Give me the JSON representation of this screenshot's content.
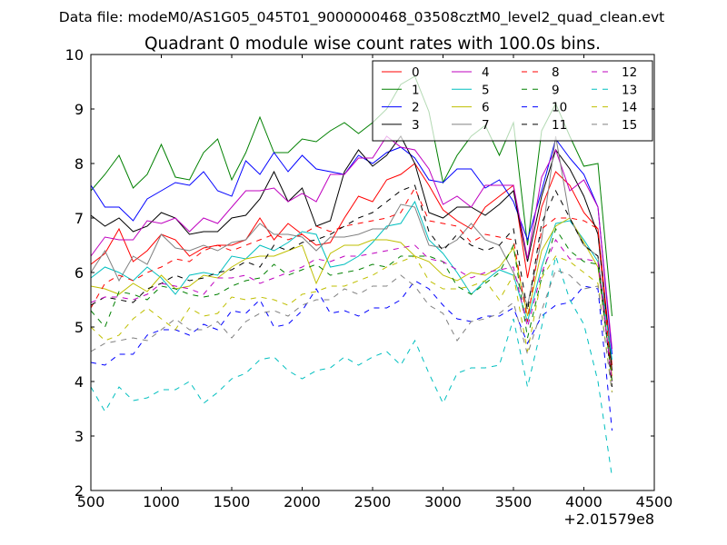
{
  "chart_data": {
    "type": "line",
    "suptitle": "Data file: modeM0/AS1G05_045T01_9000000468_03508cztM0_level2_quad_clean.evt",
    "title": "Quadrant 0 module wise count rates with 100.0s bins.",
    "xlabel": "",
    "ylabel": "",
    "x_offset_label": "+2.01579e8",
    "xlim": [
      500,
      4500
    ],
    "ylim": [
      2,
      10
    ],
    "xticks": [
      "500",
      "1000",
      "1500",
      "2000",
      "2500",
      "3000",
      "3500",
      "4000",
      "4500"
    ],
    "yticks": [
      "2",
      "3",
      "4",
      "5",
      "6",
      "7",
      "8",
      "9",
      "10"
    ],
    "grid": false,
    "legend_position": "top-right",
    "x": [
      500,
      600,
      700,
      800,
      900,
      1000,
      1100,
      1200,
      1300,
      1400,
      1500,
      1600,
      1700,
      1800,
      1900,
      2000,
      2100,
      2200,
      2300,
      2400,
      2500,
      2600,
      2700,
      2800,
      2900,
      3000,
      3100,
      3200,
      3300,
      3400,
      3500,
      3600,
      3700,
      3800,
      3900,
      4000,
      4100,
      4200
    ],
    "series": [
      {
        "name": "0",
        "color": "#ff0000",
        "dash": "solid",
        "values": [
          6.15,
          6.35,
          6.8,
          6.2,
          6.4,
          6.7,
          6.6,
          6.3,
          6.45,
          6.5,
          6.5,
          6.6,
          7.0,
          6.6,
          6.9,
          6.7,
          6.5,
          6.55,
          7.0,
          7.4,
          7.3,
          7.7,
          7.8,
          8.0,
          7.6,
          7.15,
          6.95,
          6.8,
          7.2,
          7.4,
          7.6,
          5.9,
          7.2,
          7.85,
          7.6,
          7.1,
          6.8,
          4.3
        ]
      },
      {
        "name": "1",
        "color": "#008000",
        "dash": "solid",
        "values": [
          7.5,
          7.8,
          8.15,
          7.55,
          7.8,
          8.35,
          7.75,
          7.7,
          8.2,
          8.45,
          7.7,
          8.2,
          8.85,
          8.2,
          8.2,
          8.45,
          8.4,
          8.6,
          8.75,
          8.55,
          8.75,
          9.0,
          9.45,
          9.6,
          8.95,
          7.65,
          8.15,
          8.5,
          8.7,
          8.15,
          8.75,
          6.5,
          8.6,
          9.1,
          8.5,
          7.95,
          8.0,
          5.2
        ]
      },
      {
        "name": "2",
        "color": "#0000ff",
        "dash": "solid",
        "values": [
          7.6,
          7.2,
          7.2,
          6.95,
          7.35,
          7.5,
          7.65,
          7.6,
          7.85,
          7.5,
          7.4,
          8.05,
          7.8,
          8.2,
          7.85,
          8.15,
          7.9,
          7.85,
          7.8,
          8.15,
          8.0,
          8.2,
          8.3,
          8.1,
          7.7,
          7.65,
          7.9,
          7.9,
          7.55,
          7.7,
          7.3,
          6.6,
          7.5,
          8.45,
          8.1,
          7.8,
          7.2,
          4.5
        ]
      },
      {
        "name": "3",
        "color": "#000000",
        "dash": "solid",
        "values": [
          7.05,
          6.85,
          7.0,
          6.75,
          6.85,
          7.1,
          7.0,
          6.7,
          6.75,
          6.75,
          7.0,
          7.05,
          7.35,
          7.85,
          7.3,
          7.55,
          6.85,
          6.95,
          7.85,
          8.25,
          7.95,
          8.15,
          8.5,
          8.0,
          7.1,
          7.0,
          7.2,
          7.2,
          7.05,
          7.25,
          7.5,
          6.2,
          7.4,
          8.25,
          7.9,
          7.4,
          6.7,
          4.2
        ]
      },
      {
        "name": "4",
        "color": "#bf00bf",
        "dash": "solid",
        "values": [
          6.3,
          6.65,
          6.6,
          6.6,
          6.95,
          6.9,
          7.0,
          6.75,
          7.0,
          6.9,
          7.2,
          7.5,
          7.5,
          7.55,
          7.3,
          7.45,
          7.3,
          7.8,
          7.8,
          8.1,
          8.1,
          8.5,
          8.3,
          8.25,
          7.9,
          7.25,
          7.4,
          7.2,
          7.6,
          7.6,
          7.6,
          6.25,
          7.75,
          8.25,
          7.5,
          7.7,
          7.2,
          4.6
        ]
      },
      {
        "name": "5",
        "color": "#00bfbf",
        "dash": "solid",
        "values": [
          5.9,
          6.1,
          6.0,
          5.85,
          6.1,
          5.9,
          5.6,
          5.95,
          6.0,
          5.95,
          6.3,
          6.25,
          6.5,
          6.4,
          6.55,
          6.75,
          6.7,
          6.1,
          6.15,
          6.3,
          6.55,
          6.85,
          6.9,
          7.3,
          6.6,
          6.35,
          6.0,
          5.6,
          5.85,
          6.05,
          5.95,
          5.1,
          6.1,
          6.9,
          6.95,
          6.6,
          6.2,
          4.4
        ]
      },
      {
        "name": "6",
        "color": "#bfbf00",
        "dash": "solid",
        "values": [
          5.75,
          5.7,
          5.6,
          5.8,
          5.65,
          5.95,
          5.7,
          5.75,
          5.95,
          5.9,
          6.1,
          6.25,
          6.3,
          6.3,
          6.4,
          6.5,
          5.8,
          6.35,
          6.5,
          6.5,
          6.6,
          6.6,
          6.55,
          6.3,
          6.2,
          5.95,
          5.85,
          6.0,
          5.95,
          6.1,
          6.45,
          5.2,
          6.4,
          6.85,
          7.0,
          6.55,
          6.1,
          4.1
        ]
      },
      {
        "name": "7",
        "color": "#808080",
        "dash": "solid",
        "values": [
          6.0,
          6.4,
          5.85,
          6.3,
          6.15,
          6.7,
          6.45,
          6.4,
          6.5,
          6.4,
          6.55,
          6.6,
          6.9,
          6.7,
          6.7,
          6.65,
          6.4,
          6.65,
          6.65,
          6.7,
          6.8,
          6.8,
          7.25,
          7.2,
          6.5,
          6.45,
          6.6,
          6.9,
          6.6,
          6.5,
          6.0,
          5.4,
          6.6,
          8.5,
          7.0,
          6.5,
          6.3,
          4.0
        ]
      },
      {
        "name": "8",
        "color": "#ff0000",
        "dash": "dashed",
        "values": [
          5.35,
          5.8,
          5.95,
          5.85,
          6.0,
          6.1,
          6.25,
          6.2,
          6.4,
          6.5,
          6.4,
          6.5,
          6.6,
          6.7,
          6.6,
          6.7,
          6.85,
          6.75,
          6.85,
          6.9,
          6.95,
          7.0,
          7.1,
          7.55,
          6.95,
          6.9,
          6.85,
          6.55,
          6.7,
          6.65,
          6.6,
          5.1,
          6.8,
          7.0,
          7.0,
          6.95,
          6.8,
          4.0
        ]
      },
      {
        "name": "9",
        "color": "#008000",
        "dash": "dashed",
        "values": [
          5.3,
          5.0,
          5.65,
          5.6,
          5.5,
          5.75,
          5.7,
          5.6,
          5.55,
          5.6,
          5.75,
          5.85,
          5.9,
          6.15,
          5.95,
          6.05,
          6.15,
          5.95,
          6.0,
          6.05,
          6.15,
          6.1,
          6.3,
          6.3,
          6.3,
          6.2,
          5.75,
          5.6,
          5.8,
          6.0,
          6.5,
          4.8,
          5.9,
          6.8,
          6.4,
          6.2,
          6.15,
          4.0
        ]
      },
      {
        "name": "10",
        "color": "#0000ff",
        "dash": "dashed",
        "values": [
          4.35,
          4.3,
          4.5,
          4.5,
          4.85,
          4.95,
          4.95,
          4.85,
          5.05,
          4.95,
          5.3,
          5.25,
          5.5,
          5.0,
          5.05,
          5.3,
          5.7,
          5.25,
          5.3,
          5.2,
          5.35,
          5.35,
          5.5,
          5.85,
          5.7,
          5.4,
          5.15,
          5.1,
          5.2,
          5.2,
          5.35,
          4.7,
          5.2,
          5.4,
          5.45,
          5.75,
          5.7,
          3.1
        ]
      },
      {
        "name": "11",
        "color": "#000000",
        "dash": "dashed",
        "values": [
          5.4,
          5.55,
          5.5,
          5.45,
          5.7,
          5.8,
          5.95,
          5.85,
          5.9,
          6.0,
          6.05,
          6.2,
          6.1,
          6.5,
          6.4,
          6.55,
          6.6,
          6.7,
          6.85,
          7.0,
          7.1,
          7.3,
          7.5,
          7.6,
          6.75,
          6.4,
          6.7,
          6.5,
          6.4,
          6.5,
          6.8,
          5.3,
          6.9,
          7.5,
          7.0,
          6.5,
          6.3,
          3.9
        ]
      },
      {
        "name": "12",
        "color": "#bf00bf",
        "dash": "dashed",
        "values": [
          5.45,
          5.55,
          5.55,
          5.5,
          5.6,
          5.8,
          5.75,
          5.7,
          5.6,
          5.9,
          5.9,
          5.95,
          5.8,
          5.9,
          6.0,
          6.1,
          6.25,
          6.2,
          6.3,
          6.3,
          6.35,
          6.4,
          6.45,
          6.5,
          6.25,
          6.2,
          6.05,
          5.9,
          6.0,
          6.05,
          6.1,
          5.0,
          6.0,
          6.6,
          6.25,
          6.25,
          6.2,
          4.0
        ]
      },
      {
        "name": "13",
        "color": "#00bfbf",
        "dash": "dashed",
        "values": [
          3.9,
          3.45,
          3.9,
          3.65,
          3.7,
          3.85,
          3.85,
          4.0,
          3.6,
          3.8,
          4.05,
          4.15,
          4.4,
          4.45,
          4.2,
          4.05,
          4.2,
          4.25,
          4.45,
          4.3,
          4.45,
          4.55,
          4.3,
          4.75,
          4.15,
          3.6,
          4.15,
          4.25,
          4.25,
          4.3,
          5.15,
          3.9,
          5.0,
          6.3,
          5.5,
          5.05,
          4.0,
          2.25
        ]
      },
      {
        "name": "14",
        "color": "#bfbf00",
        "dash": "dashed",
        "values": [
          5.0,
          4.75,
          4.85,
          5.15,
          5.35,
          5.15,
          4.95,
          5.35,
          5.2,
          5.25,
          5.55,
          5.5,
          5.55,
          5.5,
          5.4,
          5.6,
          5.65,
          5.75,
          5.75,
          5.85,
          5.95,
          6.1,
          6.2,
          6.3,
          5.85,
          5.7,
          5.7,
          5.75,
          5.85,
          5.5,
          5.95,
          4.55,
          5.9,
          6.3,
          6.2,
          6.0,
          5.8,
          3.8
        ]
      },
      {
        "name": "15",
        "color": "#808080",
        "dash": "dashed",
        "values": [
          4.55,
          4.7,
          4.75,
          4.8,
          4.75,
          4.95,
          5.15,
          4.95,
          4.95,
          5.1,
          4.8,
          5.1,
          5.25,
          5.3,
          5.2,
          5.4,
          5.5,
          5.5,
          5.7,
          5.6,
          5.75,
          5.75,
          5.95,
          5.75,
          5.4,
          5.25,
          4.75,
          5.1,
          5.15,
          5.25,
          5.45,
          4.5,
          5.3,
          6.05,
          5.95,
          5.7,
          5.75,
          3.8
        ]
      }
    ]
  }
}
